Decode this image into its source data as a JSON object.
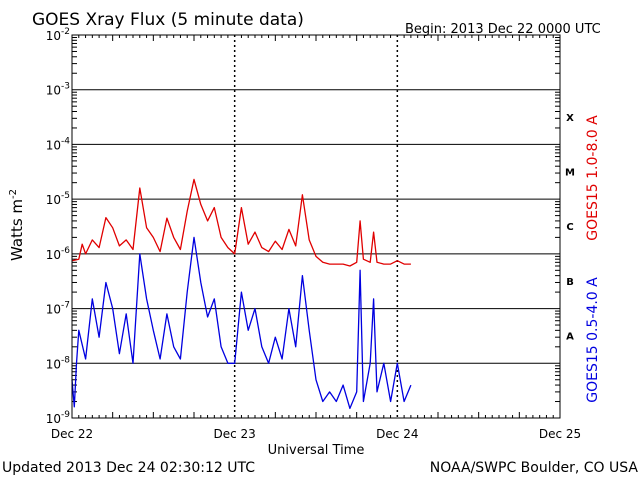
{
  "header": {
    "title": "GOES Xray Flux (5 minute data)",
    "begin": "Begin:  2013 Dec 22 0000 UTC"
  },
  "footer": {
    "updated": "Updated 2013 Dec 24 02:30:12 UTC",
    "credit": "NOAA/SWPC Boulder, CO USA"
  },
  "colors": {
    "long": "#e00000",
    "short": "#0000e0",
    "grid": "#000000"
  },
  "chart_data": {
    "type": "line",
    "title": "GOES Xray Flux (5 minute data)",
    "xlabel": "Universal Time",
    "ylabel": "Watts m",
    "ylabel_sup": "-2",
    "yscale": "log",
    "ylim": [
      1e-09,
      0.01
    ],
    "xlim": [
      "2013-12-22T00:00",
      "2013-12-25T00:00"
    ],
    "xticks": [
      {
        "x": "2013-12-22T00:00",
        "label": "Dec 22"
      },
      {
        "x": "2013-12-23T00:00",
        "label": "Dec 23"
      },
      {
        "x": "2013-12-24T00:00",
        "label": "Dec 24"
      },
      {
        "x": "2013-12-25T00:00",
        "label": "Dec 25"
      }
    ],
    "yticks": [
      {
        "v": 0.01,
        "base": "10",
        "exp": "-2"
      },
      {
        "v": 0.001,
        "base": "10",
        "exp": "-3"
      },
      {
        "v": 0.0001,
        "base": "10",
        "exp": "-4"
      },
      {
        "v": 1e-05,
        "base": "10",
        "exp": "-5"
      },
      {
        "v": 1e-06,
        "base": "10",
        "exp": "-6"
      },
      {
        "v": 1e-07,
        "base": "10",
        "exp": "-7"
      },
      {
        "v": 1e-08,
        "base": "10",
        "exp": "-8"
      },
      {
        "v": 1e-09,
        "base": "10",
        "exp": "-9"
      }
    ],
    "flare_classes": [
      {
        "label": "X",
        "v": 0.00032
      },
      {
        "label": "M",
        "v": 3.2e-05
      },
      {
        "label": "C",
        "v": 3.2e-06
      },
      {
        "label": "B",
        "v": 3.2e-07
      },
      {
        "label": "A",
        "v": 3.2e-08
      }
    ],
    "grid": true,
    "series": [
      {
        "name": "GOES15 1.0-8.0 A",
        "color": "#e00000",
        "points": [
          [
            "2013-12-22T00:00",
            7.5e-07
          ],
          [
            "2013-12-22T01:00",
            8e-07
          ],
          [
            "2013-12-22T01:30",
            1.5e-06
          ],
          [
            "2013-12-22T02:00",
            1e-06
          ],
          [
            "2013-12-22T03:00",
            1.8e-06
          ],
          [
            "2013-12-22T04:00",
            1.3e-06
          ],
          [
            "2013-12-22T05:00",
            4.6e-06
          ],
          [
            "2013-12-22T06:00",
            3e-06
          ],
          [
            "2013-12-22T07:00",
            1.4e-06
          ],
          [
            "2013-12-22T08:00",
            1.8e-06
          ],
          [
            "2013-12-22T09:00",
            1.2e-06
          ],
          [
            "2013-12-22T10:00",
            1.6e-05
          ],
          [
            "2013-12-22T11:00",
            3e-06
          ],
          [
            "2013-12-22T12:00",
            2e-06
          ],
          [
            "2013-12-22T13:00",
            1.1e-06
          ],
          [
            "2013-12-22T14:00",
            4.5e-06
          ],
          [
            "2013-12-22T15:00",
            2e-06
          ],
          [
            "2013-12-22T16:00",
            1.2e-06
          ],
          [
            "2013-12-22T17:00",
            6e-06
          ],
          [
            "2013-12-22T18:00",
            2.3e-05
          ],
          [
            "2013-12-22T19:00",
            8e-06
          ],
          [
            "2013-12-22T20:00",
            4e-06
          ],
          [
            "2013-12-22T21:00",
            7e-06
          ],
          [
            "2013-12-22T22:00",
            2e-06
          ],
          [
            "2013-12-22T23:00",
            1.3e-06
          ],
          [
            "2013-12-23T00:00",
            1e-06
          ],
          [
            "2013-12-23T01:00",
            7e-06
          ],
          [
            "2013-12-23T02:00",
            1.5e-06
          ],
          [
            "2013-12-23T03:00",
            2.5e-06
          ],
          [
            "2013-12-23T04:00",
            1.3e-06
          ],
          [
            "2013-12-23T05:00",
            1.1e-06
          ],
          [
            "2013-12-23T06:00",
            1.7e-06
          ],
          [
            "2013-12-23T07:00",
            1.2e-06
          ],
          [
            "2013-12-23T08:00",
            2.8e-06
          ],
          [
            "2013-12-23T09:00",
            1.4e-06
          ],
          [
            "2013-12-23T10:00",
            1.2e-05
          ],
          [
            "2013-12-23T11:00",
            1.8e-06
          ],
          [
            "2013-12-23T12:00",
            9e-07
          ],
          [
            "2013-12-23T13:00",
            7e-07
          ],
          [
            "2013-12-23T14:00",
            6.5e-07
          ],
          [
            "2013-12-23T15:00",
            6.5e-07
          ],
          [
            "2013-12-23T16:00",
            6.5e-07
          ],
          [
            "2013-12-23T17:00",
            6e-07
          ],
          [
            "2013-12-23T18:00",
            7e-07
          ],
          [
            "2013-12-23T18:30",
            4e-06
          ],
          [
            "2013-12-23T19:00",
            8e-07
          ],
          [
            "2013-12-23T20:00",
            7e-07
          ],
          [
            "2013-12-23T20:30",
            2.5e-06
          ],
          [
            "2013-12-23T21:00",
            7e-07
          ],
          [
            "2013-12-23T22:00",
            6.5e-07
          ],
          [
            "2013-12-23T23:00",
            6.5e-07
          ],
          [
            "2013-12-24T00:00",
            7.5e-07
          ],
          [
            "2013-12-24T01:00",
            6.5e-07
          ],
          [
            "2013-12-24T02:00",
            6.5e-07
          ]
        ]
      },
      {
        "name": "GOES15 0.5-4.0 A",
        "color": "#0000e0",
        "points": [
          [
            "2013-12-22T00:00",
            5e-09
          ],
          [
            "2013-12-22T00:20",
            1.6e-09
          ],
          [
            "2013-12-22T00:40",
            1e-08
          ],
          [
            "2013-12-22T01:00",
            4e-08
          ],
          [
            "2013-12-22T02:00",
            1.2e-08
          ],
          [
            "2013-12-22T03:00",
            1.5e-07
          ],
          [
            "2013-12-22T04:00",
            3e-08
          ],
          [
            "2013-12-22T05:00",
            3e-07
          ],
          [
            "2013-12-22T06:00",
            1e-07
          ],
          [
            "2013-12-22T07:00",
            1.5e-08
          ],
          [
            "2013-12-22T08:00",
            8e-08
          ],
          [
            "2013-12-22T09:00",
            1e-08
          ],
          [
            "2013-12-22T10:00",
            1e-06
          ],
          [
            "2013-12-22T11:00",
            1.5e-07
          ],
          [
            "2013-12-22T12:00",
            4e-08
          ],
          [
            "2013-12-22T13:00",
            1.2e-08
          ],
          [
            "2013-12-22T14:00",
            8e-08
          ],
          [
            "2013-12-22T15:00",
            2e-08
          ],
          [
            "2013-12-22T16:00",
            1.2e-08
          ],
          [
            "2013-12-22T17:00",
            2e-07
          ],
          [
            "2013-12-22T18:00",
            2e-06
          ],
          [
            "2013-12-22T19:00",
            3e-07
          ],
          [
            "2013-12-22T20:00",
            7e-08
          ],
          [
            "2013-12-22T21:00",
            1.5e-07
          ],
          [
            "2013-12-22T22:00",
            2e-08
          ],
          [
            "2013-12-22T23:00",
            1e-08
          ],
          [
            "2013-12-23T00:00",
            1e-08
          ],
          [
            "2013-12-23T01:00",
            2e-07
          ],
          [
            "2013-12-23T02:00",
            4e-08
          ],
          [
            "2013-12-23T03:00",
            1e-07
          ],
          [
            "2013-12-23T04:00",
            2e-08
          ],
          [
            "2013-12-23T05:00",
            1e-08
          ],
          [
            "2013-12-23T06:00",
            3e-08
          ],
          [
            "2013-12-23T07:00",
            1.2e-08
          ],
          [
            "2013-12-23T08:00",
            1e-07
          ],
          [
            "2013-12-23T09:00",
            2e-08
          ],
          [
            "2013-12-23T10:00",
            4e-07
          ],
          [
            "2013-12-23T11:00",
            4e-08
          ],
          [
            "2013-12-23T12:00",
            5e-09
          ],
          [
            "2013-12-23T13:00",
            2e-09
          ],
          [
            "2013-12-23T14:00",
            3e-09
          ],
          [
            "2013-12-23T15:00",
            2e-09
          ],
          [
            "2013-12-23T16:00",
            4e-09
          ],
          [
            "2013-12-23T17:00",
            1.5e-09
          ],
          [
            "2013-12-23T18:00",
            3e-09
          ],
          [
            "2013-12-23T18:30",
            5e-07
          ],
          [
            "2013-12-23T19:00",
            2e-09
          ],
          [
            "2013-12-23T20:00",
            1e-08
          ],
          [
            "2013-12-23T20:30",
            1.5e-07
          ],
          [
            "2013-12-23T21:00",
            3e-09
          ],
          [
            "2013-12-23T22:00",
            1e-08
          ],
          [
            "2013-12-23T23:00",
            2e-09
          ],
          [
            "2013-12-24T00:00",
            1e-08
          ],
          [
            "2013-12-24T01:00",
            2e-09
          ],
          [
            "2013-12-24T02:00",
            4e-09
          ]
        ]
      }
    ]
  }
}
